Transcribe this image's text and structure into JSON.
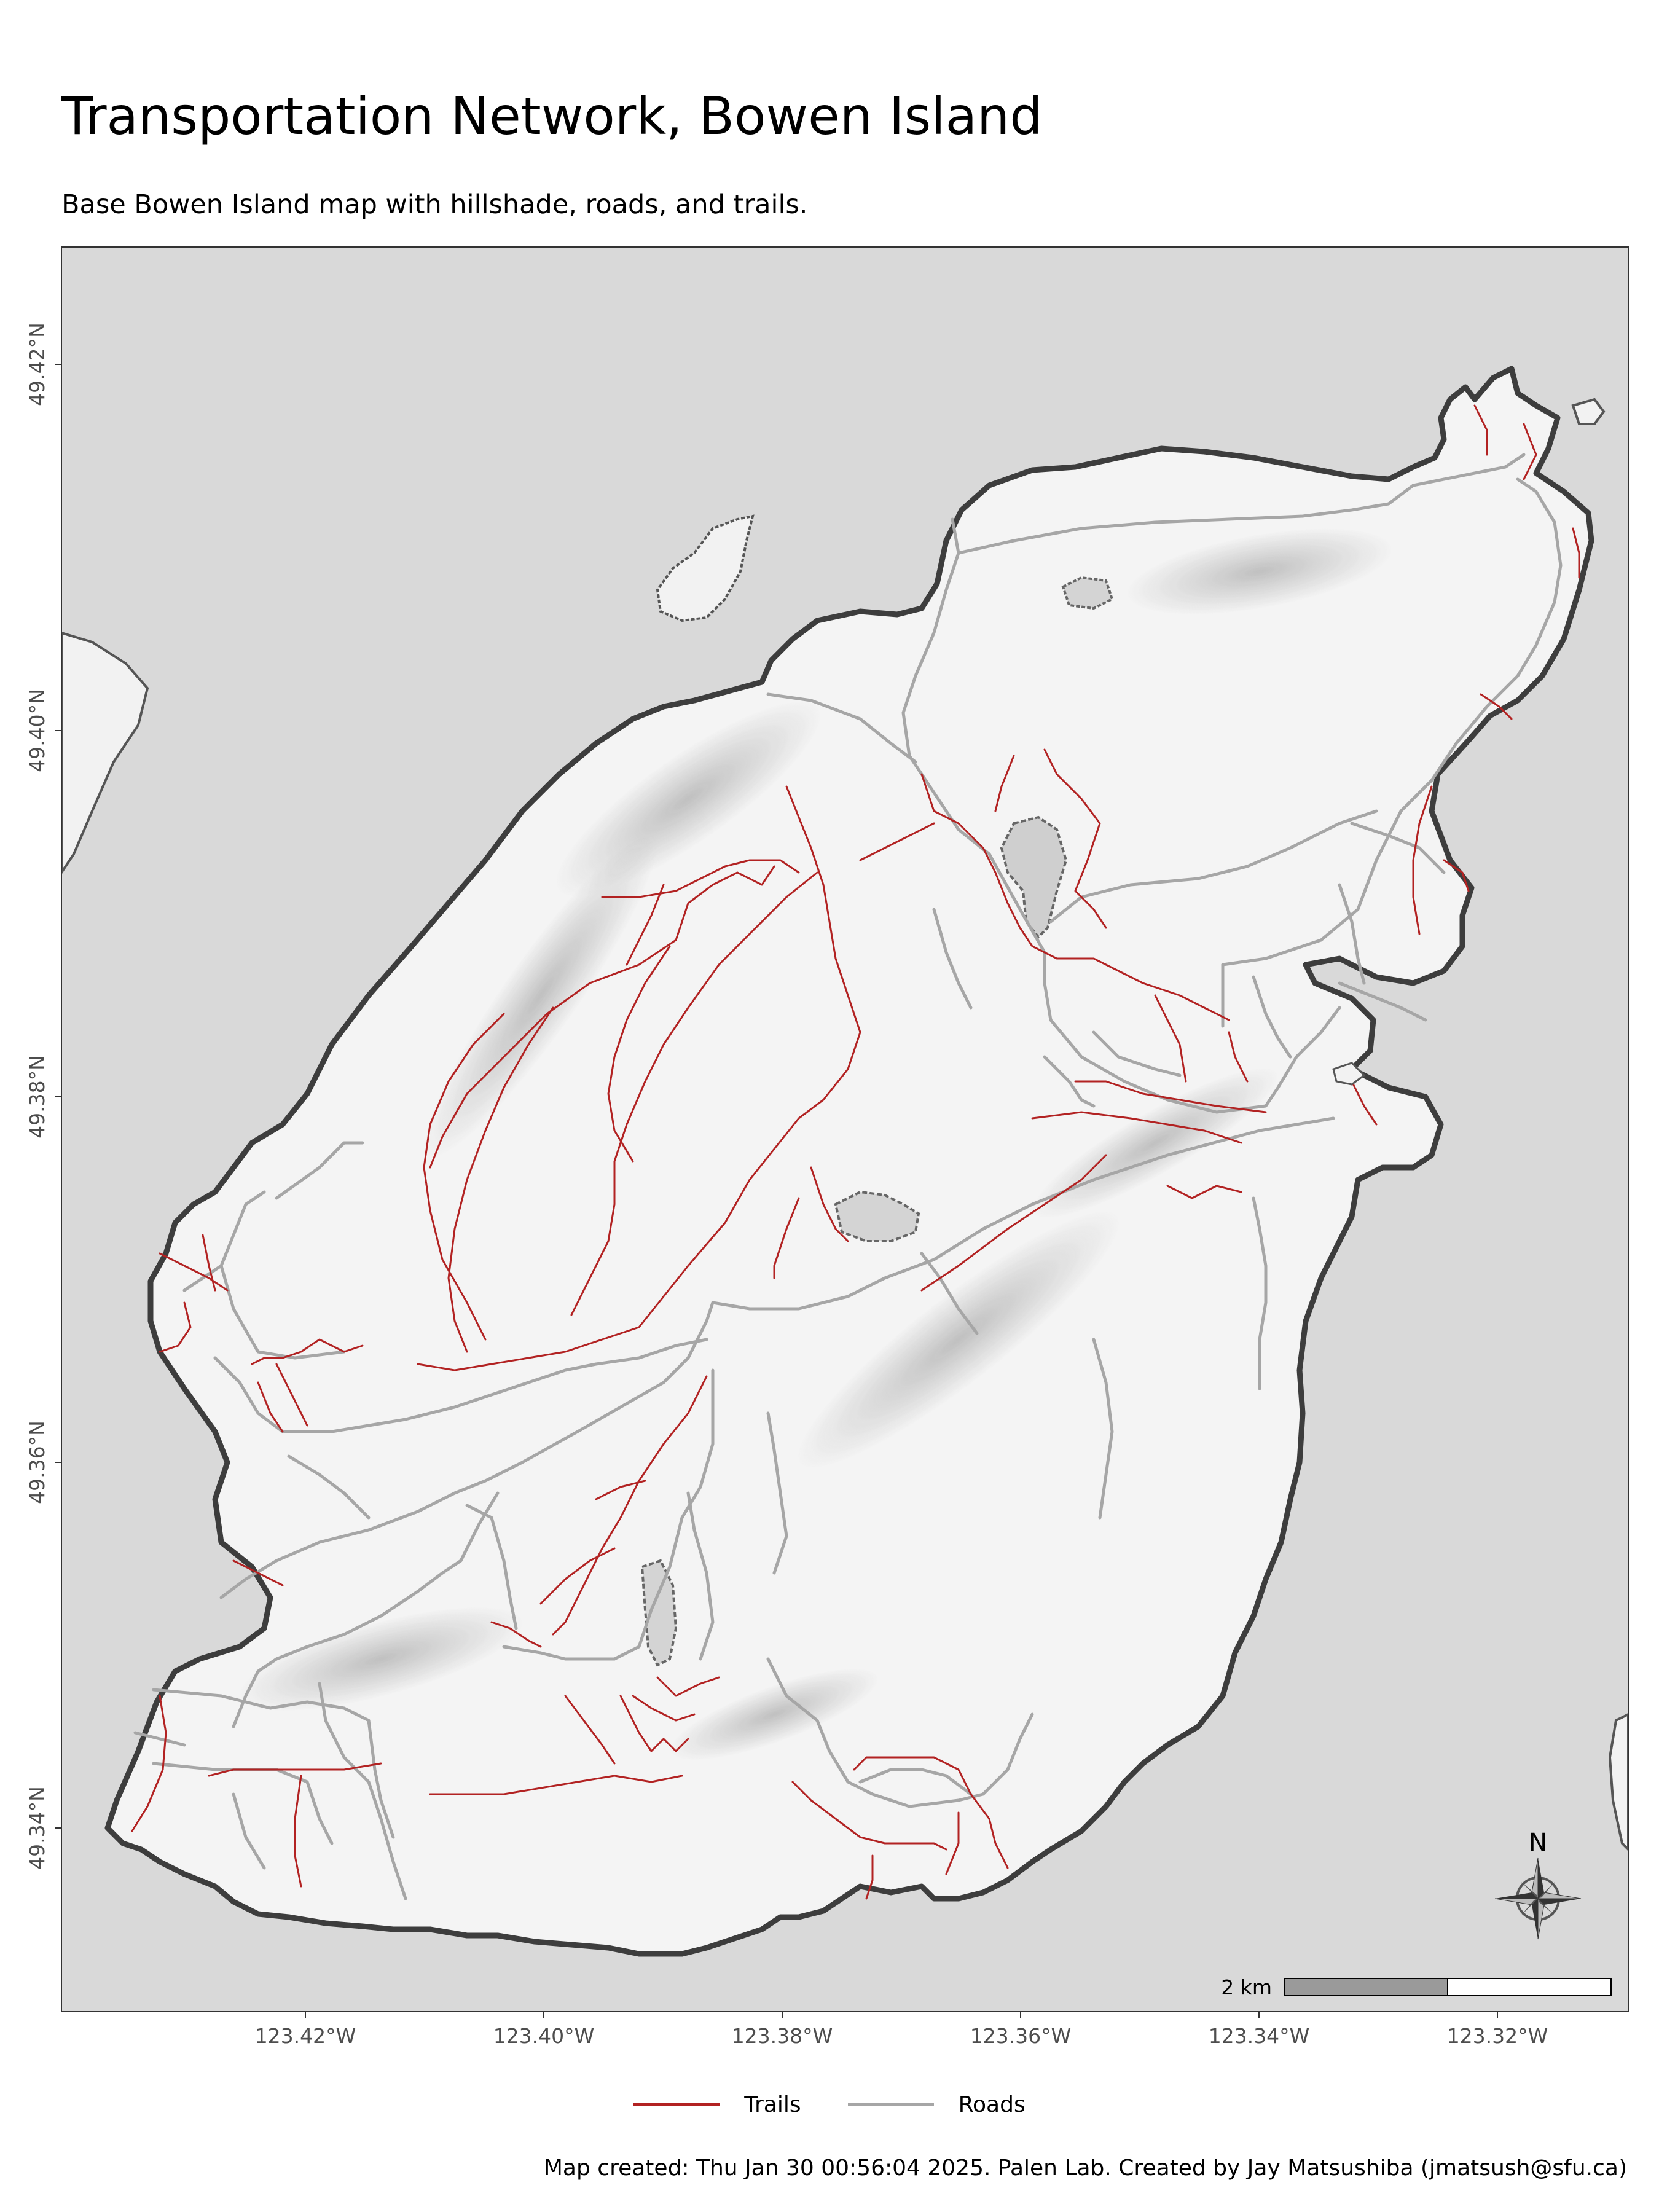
{
  "title": "Transportation Network, Bowen Island",
  "subtitle": "Base Bowen Island map with hillshade, roads, and trails.",
  "axes": {
    "x_ticks": [
      "123.42°W",
      "123.40°W",
      "123.38°W",
      "123.36°W",
      "123.34°W",
      "123.32°W"
    ],
    "y_ticks": [
      "49.42°N",
      "49.40°N",
      "49.38°N",
      "49.36°N",
      "49.34°N"
    ]
  },
  "legend": {
    "items": [
      {
        "label": "Trails",
        "color": "#b22222"
      },
      {
        "label": "Roads",
        "color": "#a6a6a6"
      }
    ]
  },
  "scale_bar": {
    "label": "2 km"
  },
  "north_arrow": {
    "label": "N",
    "icon": "compass-rose-icon"
  },
  "caption": "Map created: Thu Jan 30 00:56:04 2025. Palen Lab. Created by Jay Matsushiba (jmatsush@sfu.ca)",
  "colors": {
    "water": "#d9d9d9",
    "land": "#f4f4f4",
    "coastline": "#3d3d3d",
    "trails": "#b22222",
    "roads": "#a6a6a6"
  }
}
